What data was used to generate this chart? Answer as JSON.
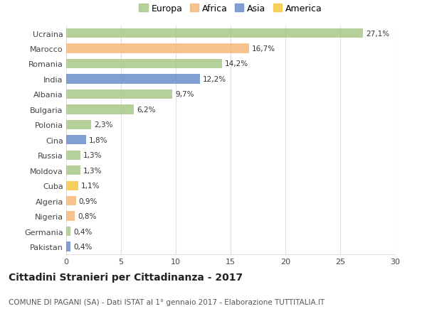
{
  "countries": [
    "Ucraina",
    "Marocco",
    "Romania",
    "India",
    "Albania",
    "Bulgaria",
    "Polonia",
    "Cina",
    "Russia",
    "Moldova",
    "Cuba",
    "Algeria",
    "Nigeria",
    "Germania",
    "Pakistan"
  ],
  "values": [
    27.1,
    16.7,
    14.2,
    12.2,
    9.7,
    6.2,
    2.3,
    1.8,
    1.3,
    1.3,
    1.1,
    0.9,
    0.8,
    0.4,
    0.4
  ],
  "labels": [
    "27,1%",
    "16,7%",
    "14,2%",
    "12,2%",
    "9,7%",
    "6,2%",
    "2,3%",
    "1,8%",
    "1,3%",
    "1,3%",
    "1,1%",
    "0,9%",
    "0,8%",
    "0,4%",
    "0,4%"
  ],
  "continents": [
    "Europa",
    "Africa",
    "Europa",
    "Asia",
    "Europa",
    "Europa",
    "Europa",
    "Asia",
    "Europa",
    "Europa",
    "America",
    "Africa",
    "Africa",
    "Europa",
    "Asia"
  ],
  "continent_colors": {
    "Europa": "#a8c888",
    "Africa": "#f5b87a",
    "Asia": "#6b8ec9",
    "America": "#f5c842"
  },
  "legend_order": [
    "Europa",
    "Africa",
    "Asia",
    "America"
  ],
  "title": "Cittadini Stranieri per Cittadinanza - 2017",
  "subtitle": "COMUNE DI PAGANI (SA) - Dati ISTAT al 1° gennaio 2017 - Elaborazione TUTTITALIA.IT",
  "xlim": [
    0,
    30
  ],
  "xticks": [
    0,
    5,
    10,
    15,
    20,
    25,
    30
  ],
  "bg_color": "#ffffff",
  "grid_color": "#e0e0e0",
  "bar_alpha": 0.85,
  "title_fontsize": 10,
  "subtitle_fontsize": 7.5,
  "label_fontsize": 7.5,
  "tick_fontsize": 8,
  "legend_fontsize": 9
}
